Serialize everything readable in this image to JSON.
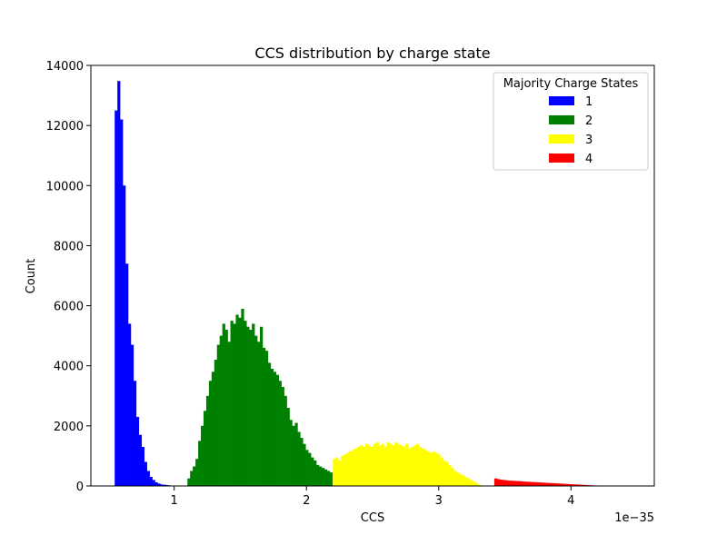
{
  "chart_data": {
    "type": "bar",
    "title": "CCS distribution by charge state",
    "xlabel": "CCS",
    "ylabel": "Count",
    "x_offset_label": "1e−35",
    "xlim": [
      0.37,
      4.63
    ],
    "ylim": [
      0,
      14000
    ],
    "grid": false,
    "legend_placement": "top-right",
    "legend_title": "Majority Charge States",
    "x_ticks": [
      1,
      2,
      3,
      4
    ],
    "y_ticks": [
      0,
      2000,
      4000,
      6000,
      8000,
      10000,
      12000,
      14000
    ],
    "series": [
      {
        "name": "1",
        "color": "#0000ff",
        "x_start": 0.55,
        "bin_width": 0.0203,
        "values": [
          12500,
          13480,
          12200,
          10000,
          7400,
          5400,
          4700,
          3500,
          2300,
          1700,
          1300,
          800,
          500,
          300,
          200,
          120,
          80,
          50,
          40,
          30,
          20,
          10,
          8,
          5
        ]
      },
      {
        "name": "2",
        "color": "#008000",
        "x_start": 1.1,
        "bin_width": 0.0203,
        "values": [
          250,
          500,
          650,
          900,
          1500,
          2000,
          2500,
          3000,
          3500,
          3800,
          4200,
          4700,
          5000,
          5400,
          5200,
          4800,
          5500,
          5400,
          5700,
          5600,
          5900,
          5500,
          5300,
          5200,
          5400,
          5000,
          4800,
          5300,
          4600,
          4500,
          4100,
          3900,
          3800,
          3700,
          3500,
          3300,
          3000,
          2600,
          2200,
          2000,
          2100,
          1800,
          1600,
          1400,
          1200,
          1100,
          950,
          850,
          700,
          650,
          600,
          550,
          500,
          450
        ]
      },
      {
        "name": "3",
        "color": "#ffff00",
        "x_start": 2.2,
        "bin_width": 0.0203,
        "values": [
          900,
          950,
          850,
          1000,
          1050,
          1100,
          1150,
          1200,
          1250,
          1300,
          1350,
          1300,
          1400,
          1350,
          1300,
          1400,
          1450,
          1350,
          1400,
          1300,
          1450,
          1400,
          1350,
          1450,
          1400,
          1350,
          1300,
          1400,
          1250,
          1300,
          1350,
          1400,
          1300,
          1250,
          1200,
          1150,
          1100,
          1150,
          1100,
          1050,
          950,
          850,
          800,
          700,
          600,
          500,
          450,
          400,
          350,
          300,
          250,
          200,
          150,
          100,
          50,
          0,
          0,
          0,
          0,
          0,
          0
        ]
      },
      {
        "name": "4",
        "color": "#ff0000",
        "x_start": 3.42,
        "bin_width": 0.0203,
        "values": [
          250,
          230,
          210,
          200,
          190,
          180,
          175,
          170,
          165,
          160,
          150,
          145,
          140,
          135,
          130,
          125,
          120,
          115,
          110,
          105,
          100,
          95,
          90,
          85,
          80,
          75,
          70,
          65,
          60,
          55,
          50,
          45,
          40,
          35,
          30,
          25,
          20,
          18,
          16,
          14,
          12,
          10,
          8,
          6,
          5,
          4,
          3,
          2,
          2,
          1
        ]
      }
    ]
  }
}
